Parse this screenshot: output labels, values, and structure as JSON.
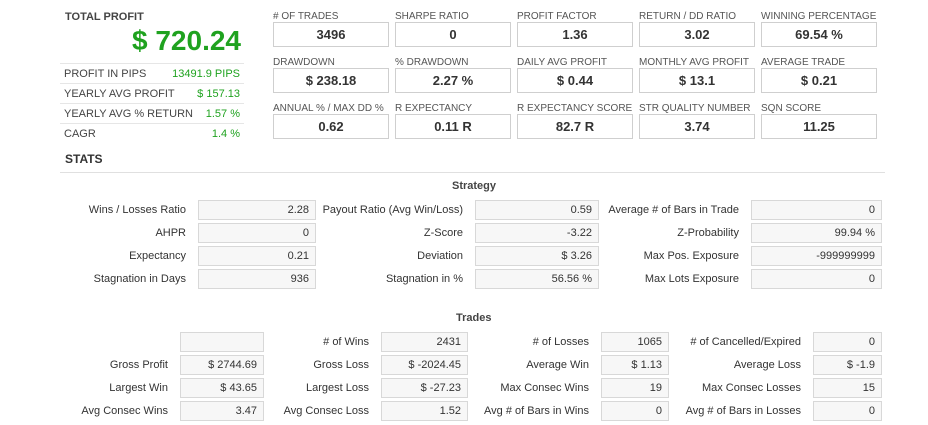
{
  "summary": {
    "total_profit_label": "TOTAL PROFIT",
    "total_profit_value": "$ 720.24",
    "rows": [
      {
        "label": "PROFIT IN PIPS",
        "value": "13491.9 PIPS"
      },
      {
        "label": "YEARLY AVG PROFIT",
        "value": "$ 157.13"
      },
      {
        "label": "YEARLY AVG % RETURN",
        "value": "1.57 %"
      },
      {
        "label": "CAGR",
        "value": "1.4 %"
      }
    ]
  },
  "metrics": [
    [
      {
        "label": "# OF TRADES",
        "value": "3496"
      },
      {
        "label": "SHARPE RATIO",
        "value": "0"
      },
      {
        "label": "PROFIT FACTOR",
        "value": "1.36"
      },
      {
        "label": "RETURN / DD RATIO",
        "value": "3.02"
      },
      {
        "label": "WINNING PERCENTAGE",
        "value": "69.54 %"
      }
    ],
    [
      {
        "label": "DRAWDOWN",
        "value": "$ 238.18"
      },
      {
        "label": "% DRAWDOWN",
        "value": "2.27 %"
      },
      {
        "label": "DAILY AVG PROFIT",
        "value": "$ 0.44"
      },
      {
        "label": "MONTHLY AVG PROFIT",
        "value": "$ 13.1"
      },
      {
        "label": "AVERAGE TRADE",
        "value": "$ 0.21"
      }
    ],
    [
      {
        "label": "ANNUAL % / MAX DD %",
        "value": "0.62"
      },
      {
        "label": "R EXPECTANCY",
        "value": "0.11 R"
      },
      {
        "label": "R EXPECTANCY SCORE",
        "value": "82.7 R"
      },
      {
        "label": "STR QUALITY NUMBER",
        "value": "3.74"
      },
      {
        "label": "SQN SCORE",
        "value": "11.25"
      }
    ]
  ],
  "stats_title": "STATS",
  "strategy": {
    "title": "Strategy",
    "rows": [
      [
        {
          "label": "Wins / Losses Ratio",
          "value": "2.28"
        },
        {
          "label": "Payout Ratio (Avg Win/Loss)",
          "value": "0.59"
        },
        {
          "label": "Average # of Bars in Trade",
          "value": "0"
        }
      ],
      [
        {
          "label": "AHPR",
          "value": "0"
        },
        {
          "label": "Z-Score",
          "value": "-3.22"
        },
        {
          "label": "Z-Probability",
          "value": "99.94 %"
        }
      ],
      [
        {
          "label": "Expectancy",
          "value": "0.21"
        },
        {
          "label": "Deviation",
          "value": "$ 3.26"
        },
        {
          "label": "Max Pos. Exposure",
          "value": "-999999999"
        }
      ],
      [
        {
          "label": "Stagnation in Days",
          "value": "936"
        },
        {
          "label": "Stagnation in %",
          "value": "56.56 %"
        },
        {
          "label": "Max Lots Exposure",
          "value": "0"
        }
      ]
    ]
  },
  "trades": {
    "title": "Trades",
    "rows": [
      [
        {
          "label": "",
          "value": ""
        },
        {
          "label": "# of Wins",
          "value": "2431"
        },
        {
          "label": "# of Losses",
          "value": "1065"
        },
        {
          "label": "# of Cancelled/Expired",
          "value": "0"
        }
      ],
      [
        {
          "label": "Gross Profit",
          "value": "$ 2744.69"
        },
        {
          "label": "Gross Loss",
          "value": "$ -2024.45"
        },
        {
          "label": "Average Win",
          "value": "$ 1.13"
        },
        {
          "label": "Average Loss",
          "value": "$ -1.9"
        }
      ],
      [
        {
          "label": "Largest Win",
          "value": "$ 43.65"
        },
        {
          "label": "Largest Loss",
          "value": "$ -27.23"
        },
        {
          "label": "Max Consec Wins",
          "value": "19"
        },
        {
          "label": "Max Consec Losses",
          "value": "15"
        }
      ],
      [
        {
          "label": "Avg Consec Wins",
          "value": "3.47"
        },
        {
          "label": "Avg Consec Loss",
          "value": "1.52"
        },
        {
          "label": "Avg # of Bars in Wins",
          "value": "0"
        },
        {
          "label": "Avg # of Bars in Losses",
          "value": "0"
        }
      ]
    ]
  }
}
